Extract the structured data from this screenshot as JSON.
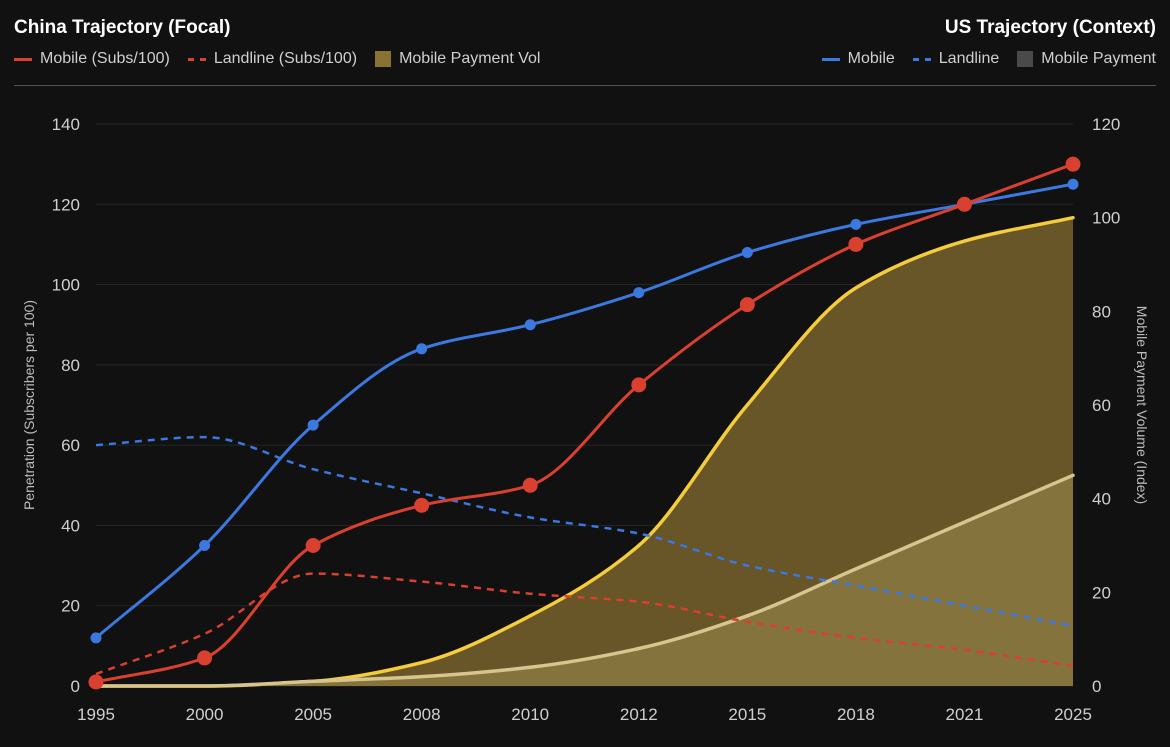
{
  "header": {
    "left_title": "China Trajectory (Focal)",
    "right_title": "US Trajectory (Context)",
    "left_legend": [
      {
        "label": "Mobile (Subs/100)",
        "style": "line",
        "color": "#d9402f"
      },
      {
        "label": "Landline (Subs/100)",
        "style": "dash",
        "color": "#d9402f"
      },
      {
        "label": "Mobile Payment Vol",
        "style": "box",
        "color": "#8a7232"
      }
    ],
    "right_legend": [
      {
        "label": "Mobile",
        "style": "line",
        "color": "#3b78e0"
      },
      {
        "label": "Landline",
        "style": "dash",
        "color": "#3b78e0"
      },
      {
        "label": "Mobile Payment",
        "style": "box",
        "color": "#4a4a4a"
      }
    ]
  },
  "chart_data": {
    "type": "line",
    "categories": [
      "1995",
      "2000",
      "2005",
      "2008",
      "2010",
      "2012",
      "2015",
      "2018",
      "2021",
      "2025"
    ],
    "y_left": {
      "label": "Penetration (Subscribers per 100)",
      "min": 0,
      "max": 140,
      "ticks": [
        0,
        20,
        40,
        60,
        80,
        100,
        120,
        140
      ]
    },
    "y_right": {
      "label": "Mobile Payment Volume (Index)",
      "min": 0,
      "max": 120,
      "ticks": [
        0,
        20,
        40,
        60,
        80,
        100,
        120
      ]
    },
    "series": [
      {
        "name": "China Mobile Payment Vol",
        "axis": "right",
        "kind": "area",
        "color": "#f5cc3c",
        "fill": "#6e5a2a",
        "values": [
          0,
          0,
          1,
          5,
          15,
          30,
          60,
          85,
          95,
          100
        ]
      },
      {
        "name": "US Mobile Payment",
        "axis": "right",
        "kind": "area",
        "color": "#d7c48e",
        "fill": "#87753e",
        "values": [
          0,
          0,
          1,
          2,
          4,
          8,
          15,
          25,
          35,
          45
        ]
      },
      {
        "name": "US Landline",
        "axis": "left",
        "kind": "dash",
        "color": "#3b78e0",
        "values": [
          60,
          62,
          54,
          48,
          42,
          38,
          30,
          25,
          20,
          15
        ]
      },
      {
        "name": "China Landline",
        "axis": "left",
        "kind": "dash",
        "color": "#d9402f",
        "values": [
          3,
          13,
          28,
          26,
          23,
          21,
          16,
          12,
          9,
          5
        ]
      },
      {
        "name": "US Mobile",
        "axis": "left",
        "kind": "line",
        "color": "#3b78e0",
        "values": [
          12,
          35,
          65,
          84,
          90,
          98,
          108,
          115,
          120,
          125
        ]
      },
      {
        "name": "China Mobile",
        "axis": "left",
        "kind": "line",
        "color": "#d9402f",
        "values": [
          1,
          7,
          35,
          45,
          50,
          75,
          95,
          110,
          120,
          130
        ]
      }
    ]
  }
}
